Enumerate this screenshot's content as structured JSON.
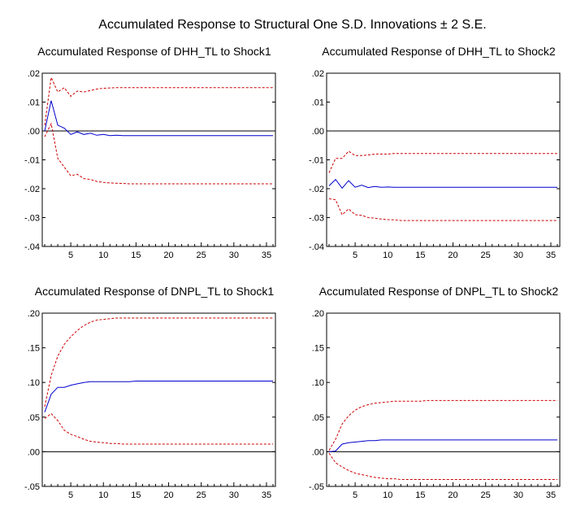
{
  "title": "Accumulated Response to Structural One S.D. Innovations ± 2 S.E.",
  "chart_data": [
    {
      "type": "line",
      "title": "Accumulated Response of DHH_TL to Shock1",
      "xlim": [
        1,
        36
      ],
      "ylim": [
        -0.04,
        0.02
      ],
      "xticks": [
        5,
        10,
        15,
        20,
        25,
        30,
        35
      ],
      "yticks": [
        ".02",
        ".01",
        ".00",
        "-.01",
        "-.02",
        "-.03",
        "-.04"
      ],
      "ytick_values": [
        0.02,
        0.01,
        0.0,
        -0.01,
        -0.02,
        -0.03,
        -0.04
      ],
      "zero_line": true,
      "series": [
        {
          "role": "response",
          "color": "#0000cc",
          "style": "solid",
          "x": [
            1,
            2,
            3,
            4,
            5,
            6,
            7,
            8,
            9,
            10,
            11,
            12,
            13,
            14,
            15,
            16,
            17,
            18,
            19,
            20,
            21,
            22,
            23,
            24,
            25,
            26,
            27,
            28,
            29,
            30,
            31,
            32,
            33,
            34,
            35,
            36
          ],
          "y": [
            0.0,
            0.0105,
            0.002,
            0.001,
            -0.0012,
            -0.0003,
            -0.0012,
            -0.0008,
            -0.0015,
            -0.0012,
            -0.0016,
            -0.0015,
            -0.0016,
            -0.0016,
            -0.0016,
            -0.0016,
            -0.0016,
            -0.0016,
            -0.0016,
            -0.0016,
            -0.0016,
            -0.0016,
            -0.0016,
            -0.0016,
            -0.0016,
            -0.0016,
            -0.0016,
            -0.0016,
            -0.0016,
            -0.0016,
            -0.0016,
            -0.0016,
            -0.0016,
            -0.0016,
            -0.0016,
            -0.0016
          ]
        },
        {
          "role": "upper",
          "color": "#cc0000",
          "style": "dashed",
          "x": [
            1,
            2,
            3,
            4,
            5,
            6,
            7,
            8,
            9,
            10,
            11,
            12,
            13,
            14,
            15,
            16,
            17,
            18,
            19,
            20,
            21,
            22,
            23,
            24,
            25,
            26,
            27,
            28,
            29,
            30,
            31,
            32,
            33,
            34,
            35,
            36
          ],
          "y": [
            0.002,
            0.0185,
            0.0135,
            0.015,
            0.012,
            0.0138,
            0.0135,
            0.014,
            0.0145,
            0.0148,
            0.0149,
            0.015,
            0.015,
            0.015,
            0.015,
            0.015,
            0.015,
            0.015,
            0.015,
            0.015,
            0.015,
            0.015,
            0.015,
            0.015,
            0.015,
            0.015,
            0.015,
            0.015,
            0.015,
            0.015,
            0.015,
            0.015,
            0.015,
            0.015,
            0.015,
            0.015
          ]
        },
        {
          "role": "lower",
          "color": "#cc0000",
          "style": "dashed",
          "x": [
            1,
            2,
            3,
            4,
            5,
            6,
            7,
            8,
            9,
            10,
            11,
            12,
            13,
            14,
            15,
            16,
            17,
            18,
            19,
            20,
            21,
            22,
            23,
            24,
            25,
            26,
            27,
            28,
            29,
            30,
            31,
            32,
            33,
            34,
            35,
            36
          ],
          "y": [
            -0.002,
            0.0025,
            -0.0095,
            -0.0125,
            -0.0155,
            -0.015,
            -0.0165,
            -0.0168,
            -0.0175,
            -0.0178,
            -0.018,
            -0.0181,
            -0.0182,
            -0.0183,
            -0.0183,
            -0.0183,
            -0.0183,
            -0.0183,
            -0.0183,
            -0.0183,
            -0.0183,
            -0.0183,
            -0.0183,
            -0.0183,
            -0.0183,
            -0.0183,
            -0.0183,
            -0.0183,
            -0.0183,
            -0.0183,
            -0.0183,
            -0.0183,
            -0.0183,
            -0.0183,
            -0.0183,
            -0.0183
          ]
        }
      ]
    },
    {
      "type": "line",
      "title": "Accumulated Response of DHH_TL to Shock2",
      "xlim": [
        1,
        36
      ],
      "ylim": [
        -0.04,
        0.02
      ],
      "xticks": [
        5,
        10,
        15,
        20,
        25,
        30,
        35
      ],
      "yticks": [
        ".02",
        ".01",
        ".00",
        "-.01",
        "-.02",
        "-.03",
        "-.04"
      ],
      "ytick_values": [
        0.02,
        0.01,
        0.0,
        -0.01,
        -0.02,
        -0.03,
        -0.04
      ],
      "zero_line": true,
      "series": [
        {
          "role": "response",
          "color": "#0000cc",
          "style": "solid",
          "x": [
            1,
            2,
            3,
            4,
            5,
            6,
            7,
            8,
            9,
            10,
            11,
            12,
            13,
            14,
            15,
            16,
            17,
            18,
            19,
            20,
            21,
            22,
            23,
            24,
            25,
            26,
            27,
            28,
            29,
            30,
            31,
            32,
            33,
            34,
            35,
            36
          ],
          "y": [
            -0.019,
            -0.0168,
            -0.0198,
            -0.0172,
            -0.0195,
            -0.0188,
            -0.0196,
            -0.0192,
            -0.0195,
            -0.0194,
            -0.0195,
            -0.0195,
            -0.0195,
            -0.0195,
            -0.0195,
            -0.0195,
            -0.0195,
            -0.0195,
            -0.0195,
            -0.0195,
            -0.0195,
            -0.0195,
            -0.0195,
            -0.0195,
            -0.0195,
            -0.0195,
            -0.0195,
            -0.0195,
            -0.0195,
            -0.0195,
            -0.0195,
            -0.0195,
            -0.0195,
            -0.0195,
            -0.0195,
            -0.0195
          ]
        },
        {
          "role": "upper",
          "color": "#cc0000",
          "style": "dashed",
          "x": [
            1,
            2,
            3,
            4,
            5,
            6,
            7,
            8,
            9,
            10,
            11,
            12,
            13,
            14,
            15,
            16,
            17,
            18,
            19,
            20,
            21,
            22,
            23,
            24,
            25,
            26,
            27,
            28,
            29,
            30,
            31,
            32,
            33,
            34,
            35,
            36
          ],
          "y": [
            -0.0145,
            -0.0095,
            -0.0095,
            -0.007,
            -0.0085,
            -0.0085,
            -0.0083,
            -0.008,
            -0.008,
            -0.008,
            -0.0078,
            -0.0078,
            -0.0078,
            -0.0078,
            -0.0078,
            -0.0078,
            -0.0078,
            -0.0078,
            -0.0078,
            -0.0078,
            -0.0078,
            -0.0078,
            -0.0078,
            -0.0078,
            -0.0078,
            -0.0078,
            -0.0078,
            -0.0078,
            -0.0078,
            -0.0078,
            -0.0078,
            -0.0078,
            -0.0078,
            -0.0078,
            -0.0078,
            -0.0078
          ]
        },
        {
          "role": "lower",
          "color": "#cc0000",
          "style": "dashed",
          "x": [
            1,
            2,
            3,
            4,
            5,
            6,
            7,
            8,
            9,
            10,
            11,
            12,
            13,
            14,
            15,
            16,
            17,
            18,
            19,
            20,
            21,
            22,
            23,
            24,
            25,
            26,
            27,
            28,
            29,
            30,
            31,
            32,
            33,
            34,
            35,
            36
          ],
          "y": [
            -0.0235,
            -0.0238,
            -0.029,
            -0.027,
            -0.029,
            -0.0292,
            -0.03,
            -0.0302,
            -0.0305,
            -0.0307,
            -0.0308,
            -0.031,
            -0.031,
            -0.031,
            -0.031,
            -0.031,
            -0.031,
            -0.031,
            -0.031,
            -0.031,
            -0.031,
            -0.031,
            -0.031,
            -0.031,
            -0.031,
            -0.031,
            -0.031,
            -0.031,
            -0.031,
            -0.031,
            -0.031,
            -0.031,
            -0.031,
            -0.031,
            -0.031,
            -0.031
          ]
        }
      ]
    },
    {
      "type": "line",
      "title": "Accumulated Response of DNPL_TL to Shock1",
      "xlim": [
        1,
        36
      ],
      "ylim": [
        -0.05,
        0.2
      ],
      "xticks": [
        5,
        10,
        15,
        20,
        25,
        30,
        35
      ],
      "yticks": [
        ".20",
        ".15",
        ".10",
        ".05",
        ".00",
        "-.05"
      ],
      "ytick_values": [
        0.2,
        0.15,
        0.1,
        0.05,
        0.0,
        -0.05
      ],
      "zero_line": true,
      "series": [
        {
          "role": "response",
          "color": "#0000cc",
          "style": "solid",
          "x": [
            1,
            2,
            3,
            4,
            5,
            6,
            7,
            8,
            9,
            10,
            11,
            12,
            13,
            14,
            15,
            16,
            17,
            18,
            19,
            20,
            21,
            22,
            23,
            24,
            25,
            26,
            27,
            28,
            29,
            30,
            31,
            32,
            33,
            34,
            35,
            36
          ],
          "y": [
            0.057,
            0.083,
            0.093,
            0.093,
            0.096,
            0.098,
            0.1,
            0.101,
            0.101,
            0.101,
            0.101,
            0.101,
            0.101,
            0.101,
            0.102,
            0.102,
            0.102,
            0.102,
            0.102,
            0.102,
            0.102,
            0.102,
            0.102,
            0.102,
            0.102,
            0.102,
            0.102,
            0.102,
            0.102,
            0.102,
            0.102,
            0.102,
            0.102,
            0.102,
            0.102,
            0.102
          ]
        },
        {
          "role": "upper",
          "color": "#cc0000",
          "style": "dashed",
          "x": [
            1,
            2,
            3,
            4,
            5,
            6,
            7,
            8,
            9,
            10,
            11,
            12,
            13,
            14,
            15,
            16,
            17,
            18,
            19,
            20,
            21,
            22,
            23,
            24,
            25,
            26,
            27,
            28,
            29,
            30,
            31,
            32,
            33,
            34,
            35,
            36
          ],
          "y": [
            0.065,
            0.11,
            0.138,
            0.155,
            0.166,
            0.175,
            0.182,
            0.187,
            0.19,
            0.191,
            0.192,
            0.193,
            0.193,
            0.193,
            0.193,
            0.193,
            0.193,
            0.193,
            0.193,
            0.193,
            0.193,
            0.193,
            0.193,
            0.193,
            0.193,
            0.193,
            0.193,
            0.193,
            0.193,
            0.193,
            0.193,
            0.193,
            0.193,
            0.193,
            0.193,
            0.193
          ]
        },
        {
          "role": "lower",
          "color": "#cc0000",
          "style": "dashed",
          "x": [
            1,
            2,
            3,
            4,
            5,
            6,
            7,
            8,
            9,
            10,
            11,
            12,
            13,
            14,
            15,
            16,
            17,
            18,
            19,
            20,
            21,
            22,
            23,
            24,
            25,
            26,
            27,
            28,
            29,
            30,
            31,
            32,
            33,
            34,
            35,
            36
          ],
          "y": [
            0.048,
            0.055,
            0.045,
            0.031,
            0.025,
            0.022,
            0.018,
            0.015,
            0.014,
            0.013,
            0.012,
            0.012,
            0.011,
            0.011,
            0.011,
            0.011,
            0.011,
            0.011,
            0.011,
            0.011,
            0.011,
            0.011,
            0.011,
            0.011,
            0.011,
            0.011,
            0.011,
            0.011,
            0.011,
            0.011,
            0.011,
            0.011,
            0.011,
            0.011,
            0.011,
            0.011
          ]
        }
      ]
    },
    {
      "type": "line",
      "title": "Accumulated Response of DNPL_TL to Shock2",
      "xlim": [
        1,
        36
      ],
      "ylim": [
        -0.05,
        0.2
      ],
      "xticks": [
        5,
        10,
        15,
        20,
        25,
        30,
        35
      ],
      "yticks": [
        ".20",
        ".15",
        ".10",
        ".05",
        ".00",
        "-.05"
      ],
      "ytick_values": [
        0.2,
        0.15,
        0.1,
        0.05,
        0.0,
        -0.05
      ],
      "zero_line": true,
      "series": [
        {
          "role": "response",
          "color": "#0000cc",
          "style": "solid",
          "x": [
            1,
            2,
            3,
            4,
            5,
            6,
            7,
            8,
            9,
            10,
            11,
            12,
            13,
            14,
            15,
            16,
            17,
            18,
            19,
            20,
            21,
            22,
            23,
            24,
            25,
            26,
            27,
            28,
            29,
            30,
            31,
            32,
            33,
            34,
            35,
            36
          ],
          "y": [
            0.0,
            0.001,
            0.011,
            0.013,
            0.014,
            0.015,
            0.016,
            0.016,
            0.017,
            0.017,
            0.017,
            0.017,
            0.017,
            0.017,
            0.017,
            0.017,
            0.017,
            0.017,
            0.017,
            0.017,
            0.017,
            0.017,
            0.017,
            0.017,
            0.017,
            0.017,
            0.017,
            0.017,
            0.017,
            0.017,
            0.017,
            0.017,
            0.017,
            0.017,
            0.017,
            0.017
          ]
        },
        {
          "role": "upper",
          "color": "#cc0000",
          "style": "dashed",
          "x": [
            1,
            2,
            3,
            4,
            5,
            6,
            7,
            8,
            9,
            10,
            11,
            12,
            13,
            14,
            15,
            16,
            17,
            18,
            19,
            20,
            21,
            22,
            23,
            24,
            25,
            26,
            27,
            28,
            29,
            30,
            31,
            32,
            33,
            34,
            35,
            36
          ],
          "y": [
            0.002,
            0.018,
            0.04,
            0.052,
            0.06,
            0.065,
            0.068,
            0.07,
            0.071,
            0.072,
            0.073,
            0.073,
            0.073,
            0.073,
            0.073,
            0.074,
            0.074,
            0.074,
            0.074,
            0.074,
            0.074,
            0.074,
            0.074,
            0.074,
            0.074,
            0.074,
            0.074,
            0.074,
            0.074,
            0.074,
            0.074,
            0.074,
            0.074,
            0.074,
            0.074,
            0.074
          ]
        },
        {
          "role": "lower",
          "color": "#cc0000",
          "style": "dashed",
          "x": [
            1,
            2,
            3,
            4,
            5,
            6,
            7,
            8,
            9,
            10,
            11,
            12,
            13,
            14,
            15,
            16,
            17,
            18,
            19,
            20,
            21,
            22,
            23,
            24,
            25,
            26,
            27,
            28,
            29,
            30,
            31,
            32,
            33,
            34,
            35,
            36
          ],
          "y": [
            -0.002,
            -0.016,
            -0.022,
            -0.027,
            -0.031,
            -0.033,
            -0.035,
            -0.037,
            -0.038,
            -0.039,
            -0.039,
            -0.04,
            -0.04,
            -0.04,
            -0.04,
            -0.04,
            -0.04,
            -0.04,
            -0.04,
            -0.04,
            -0.04,
            -0.04,
            -0.04,
            -0.04,
            -0.04,
            -0.04,
            -0.04,
            -0.04,
            -0.04,
            -0.04,
            -0.04,
            -0.04,
            -0.04,
            -0.04,
            -0.04,
            -0.04
          ]
        }
      ]
    }
  ]
}
